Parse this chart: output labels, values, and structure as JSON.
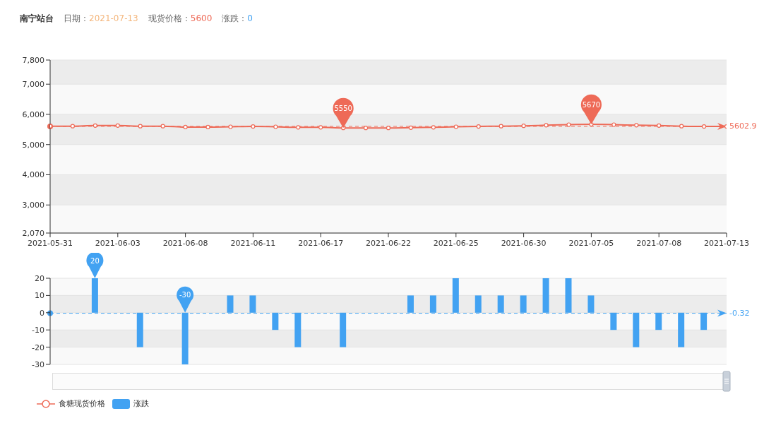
{
  "chart_data": [
    {
      "type": "line",
      "title": "南宁站台",
      "annotations": [
        "日期：2021-07-13",
        "现货价格：5600",
        "涨跌：0"
      ],
      "categories": [
        "2021-05-31",
        null,
        null,
        "2021-06-03",
        null,
        null,
        "2021-06-08",
        null,
        null,
        "2021-06-11",
        null,
        null,
        "2021-06-17",
        null,
        null,
        "2021-06-22",
        null,
        null,
        "2021-06-25",
        null,
        null,
        "2021-06-30",
        null,
        null,
        "2021-07-05",
        null,
        null,
        "2021-07-08",
        null,
        null,
        "2021-07-13"
      ],
      "series": [
        {
          "name": "食糖现货价格",
          "color": "#ee6a57",
          "values": [
            5610,
            5610,
            5630,
            5630,
            5610,
            5610,
            5580,
            5580,
            5590,
            5600,
            5590,
            5570,
            5570,
            5550,
            5550,
            5550,
            5560,
            5570,
            5590,
            5600,
            5610,
            5620,
            5640,
            5660,
            5670,
            5660,
            5640,
            5630,
            5610,
            5600,
            5600
          ],
          "value_labels": [
            null,
            null,
            null,
            null,
            null,
            null,
            null,
            null,
            null,
            null,
            null,
            null,
            null,
            "5550",
            null,
            null,
            null,
            null,
            null,
            null,
            null,
            null,
            null,
            null,
            "5670",
            null,
            null,
            null,
            null,
            null,
            null
          ]
        }
      ],
      "ylim": [
        2070,
        7800
      ],
      "yticks": [
        {
          "value": 2070,
          "label": "2,070"
        },
        {
          "value": 3000,
          "label": "3,000"
        },
        {
          "value": 4000,
          "label": "4,000"
        },
        {
          "value": 5000,
          "label": "5,000"
        },
        {
          "value": 6000,
          "label": "6,000"
        },
        {
          "value": 7000,
          "label": "7,000"
        },
        {
          "value": 7800,
          "label": "7,800"
        }
      ],
      "grid": "y",
      "legend": "bottom left",
      "marker": "circle",
      "ref_lines": [
        {
          "axis": "y",
          "value": 5602.9,
          "label": "5602.9",
          "color": "#ee6a57",
          "line_style": "dashed"
        }
      ]
    },
    {
      "type": "bar",
      "categories": [
        "2021-05-31",
        null,
        null,
        "2021-06-03",
        null,
        null,
        "2021-06-08",
        null,
        null,
        "2021-06-11",
        null,
        null,
        "2021-06-17",
        null,
        null,
        "2021-06-22",
        null,
        null,
        "2021-06-25",
        null,
        null,
        "2021-06-30",
        null,
        null,
        "2021-07-05",
        null,
        null,
        "2021-07-08",
        null,
        null,
        "2021-07-13"
      ],
      "series": [
        {
          "name": "涨跌",
          "color": "#42a2f2",
          "values": [
            0,
            0,
            20,
            0,
            -20,
            0,
            -30,
            0,
            10,
            10,
            -10,
            -20,
            0,
            -20,
            0,
            0,
            10,
            10,
            20,
            10,
            10,
            10,
            20,
            20,
            10,
            -10,
            -20,
            -10,
            -20,
            -10,
            0
          ],
          "value_labels": [
            null,
            null,
            "20",
            null,
            null,
            null,
            "-30",
            null,
            null,
            null,
            null,
            null,
            null,
            null,
            null,
            null,
            null,
            null,
            null,
            null,
            null,
            null,
            null,
            null,
            null,
            null,
            null,
            null,
            null,
            null,
            null
          ]
        }
      ],
      "ylim": [
        -30,
        20
      ],
      "yticks": [
        -30,
        -20,
        -10,
        0,
        10,
        20
      ],
      "grid": "y",
      "legend": "bottom left",
      "tick_labels": "y",
      "ref_lines": [
        {
          "axis": "y",
          "value": -0.32,
          "label": "-0.32",
          "color": "#42a2f2",
          "line_style": "dashed"
        }
      ]
    }
  ]
}
